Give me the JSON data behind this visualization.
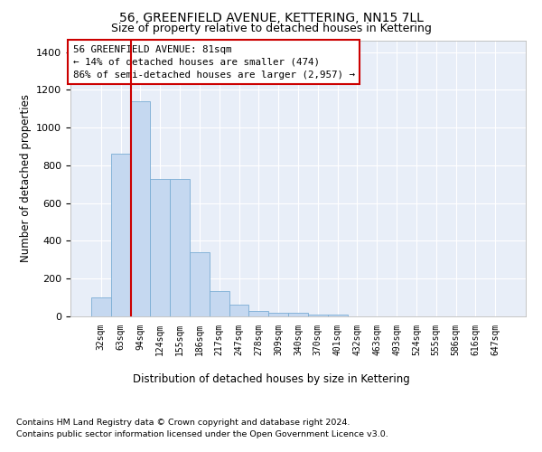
{
  "title1": "56, GREENFIELD AVENUE, KETTERING, NN15 7LL",
  "title2": "Size of property relative to detached houses in Kettering",
  "xlabel": "Distribution of detached houses by size in Kettering",
  "ylabel": "Number of detached properties",
  "categories": [
    "32sqm",
    "63sqm",
    "94sqm",
    "124sqm",
    "155sqm",
    "186sqm",
    "217sqm",
    "247sqm",
    "278sqm",
    "309sqm",
    "340sqm",
    "370sqm",
    "401sqm",
    "432sqm",
    "463sqm",
    "493sqm",
    "524sqm",
    "555sqm",
    "586sqm",
    "616sqm",
    "647sqm"
  ],
  "values": [
    100,
    860,
    1140,
    730,
    730,
    340,
    135,
    60,
    30,
    20,
    18,
    10,
    10,
    0,
    0,
    0,
    0,
    0,
    0,
    0,
    0
  ],
  "bar_color": "#c5d8f0",
  "bar_edge_color": "#7aadd4",
  "annotation_line1": "56 GREENFIELD AVENUE: 81sqm",
  "annotation_line2": "← 14% of detached houses are smaller (474)",
  "annotation_line3": "86% of semi-detached houses are larger (2,957) →",
  "annotation_box_color": "#ffffff",
  "annotation_box_edge_color": "#cc0000",
  "ylim": [
    0,
    1460
  ],
  "yticks": [
    0,
    200,
    400,
    600,
    800,
    1000,
    1200,
    1400
  ],
  "bg_color": "#e8eef8",
  "footer1": "Contains HM Land Registry data © Crown copyright and database right 2024.",
  "footer2": "Contains public sector information licensed under the Open Government Licence v3.0.",
  "red_line_color": "#cc0000",
  "red_line_x": 1.5
}
